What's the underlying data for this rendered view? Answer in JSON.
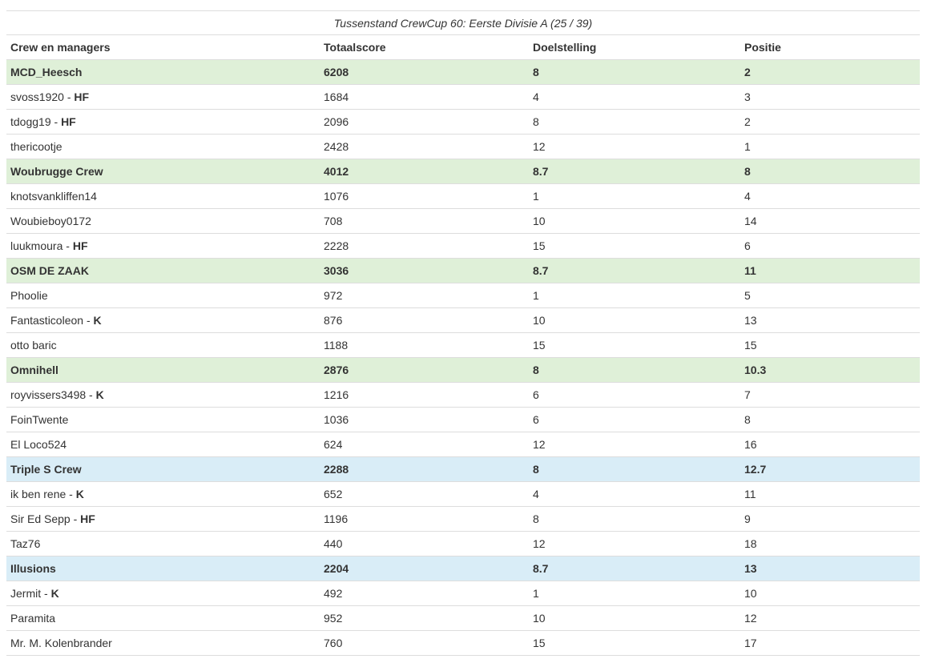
{
  "table": {
    "caption": "Tussenstand CrewCup 60: Eerste Divisie A (25 / 39)",
    "headers": [
      "Crew en managers",
      "Totaalscore",
      "Doelstelling",
      "Positie"
    ],
    "rows": [
      {
        "type": "crew",
        "color": "green",
        "name": "MCD_Heesch",
        "role": "",
        "score": "6208",
        "goal": "8",
        "pos": "2"
      },
      {
        "type": "manager",
        "name": "svoss1920",
        "role": "HF",
        "score": "1684",
        "goal": "4",
        "pos": "3"
      },
      {
        "type": "manager",
        "name": "tdogg19",
        "role": "HF",
        "score": "2096",
        "goal": "8",
        "pos": "2"
      },
      {
        "type": "manager",
        "name": "thericootje",
        "role": "",
        "score": "2428",
        "goal": "12",
        "pos": "1"
      },
      {
        "type": "crew",
        "color": "green",
        "name": "Woubrugge Crew",
        "role": "",
        "score": "4012",
        "goal": "8.7",
        "pos": "8"
      },
      {
        "type": "manager",
        "name": "knotsvankliffen14",
        "role": "",
        "score": "1076",
        "goal": "1",
        "pos": "4"
      },
      {
        "type": "manager",
        "name": "Woubieboy0172",
        "role": "",
        "score": "708",
        "goal": "10",
        "pos": "14"
      },
      {
        "type": "manager",
        "name": "luukmoura",
        "role": "HF",
        "score": "2228",
        "goal": "15",
        "pos": "6"
      },
      {
        "type": "crew",
        "color": "green",
        "name": "OSM DE ZAAK",
        "role": "",
        "score": "3036",
        "goal": "8.7",
        "pos": "11"
      },
      {
        "type": "manager",
        "name": "Phoolie",
        "role": "",
        "score": "972",
        "goal": "1",
        "pos": "5"
      },
      {
        "type": "manager",
        "name": "Fantasticoleon",
        "role": "K",
        "score": "876",
        "goal": "10",
        "pos": "13"
      },
      {
        "type": "manager",
        "name": "otto baric",
        "role": "",
        "score": "1188",
        "goal": "15",
        "pos": "15"
      },
      {
        "type": "crew",
        "color": "green",
        "name": "Omnihell",
        "role": "",
        "score": "2876",
        "goal": "8",
        "pos": "10.3"
      },
      {
        "type": "manager",
        "name": "royvissers3498",
        "role": "K",
        "score": "1216",
        "goal": "6",
        "pos": "7"
      },
      {
        "type": "manager",
        "name": "FoinTwente",
        "role": "",
        "score": "1036",
        "goal": "6",
        "pos": "8"
      },
      {
        "type": "manager",
        "name": "El Loco524",
        "role": "",
        "score": "624",
        "goal": "12",
        "pos": "16"
      },
      {
        "type": "crew",
        "color": "blue",
        "name": "Triple S Crew",
        "role": "",
        "score": "2288",
        "goal": "8",
        "pos": "12.7"
      },
      {
        "type": "manager",
        "name": "ik ben rene",
        "role": "K",
        "score": "652",
        "goal": "4",
        "pos": "11"
      },
      {
        "type": "manager",
        "name": "Sir Ed Sepp",
        "role": "HF",
        "score": "1196",
        "goal": "8",
        "pos": "9"
      },
      {
        "type": "manager",
        "name": "Taz76",
        "role": "",
        "score": "440",
        "goal": "12",
        "pos": "18"
      },
      {
        "type": "crew",
        "color": "blue",
        "name": "Illusions",
        "role": "",
        "score": "2204",
        "goal": "8.7",
        "pos": "13"
      },
      {
        "type": "manager",
        "name": "Jermit",
        "role": "K",
        "score": "492",
        "goal": "1",
        "pos": "10"
      },
      {
        "type": "manager",
        "name": "Paramita",
        "role": "",
        "score": "952",
        "goal": "10",
        "pos": "12"
      },
      {
        "type": "manager",
        "name": "Mr. M. Kolenbrander",
        "role": "",
        "score": "760",
        "goal": "15",
        "pos": "17"
      }
    ]
  }
}
